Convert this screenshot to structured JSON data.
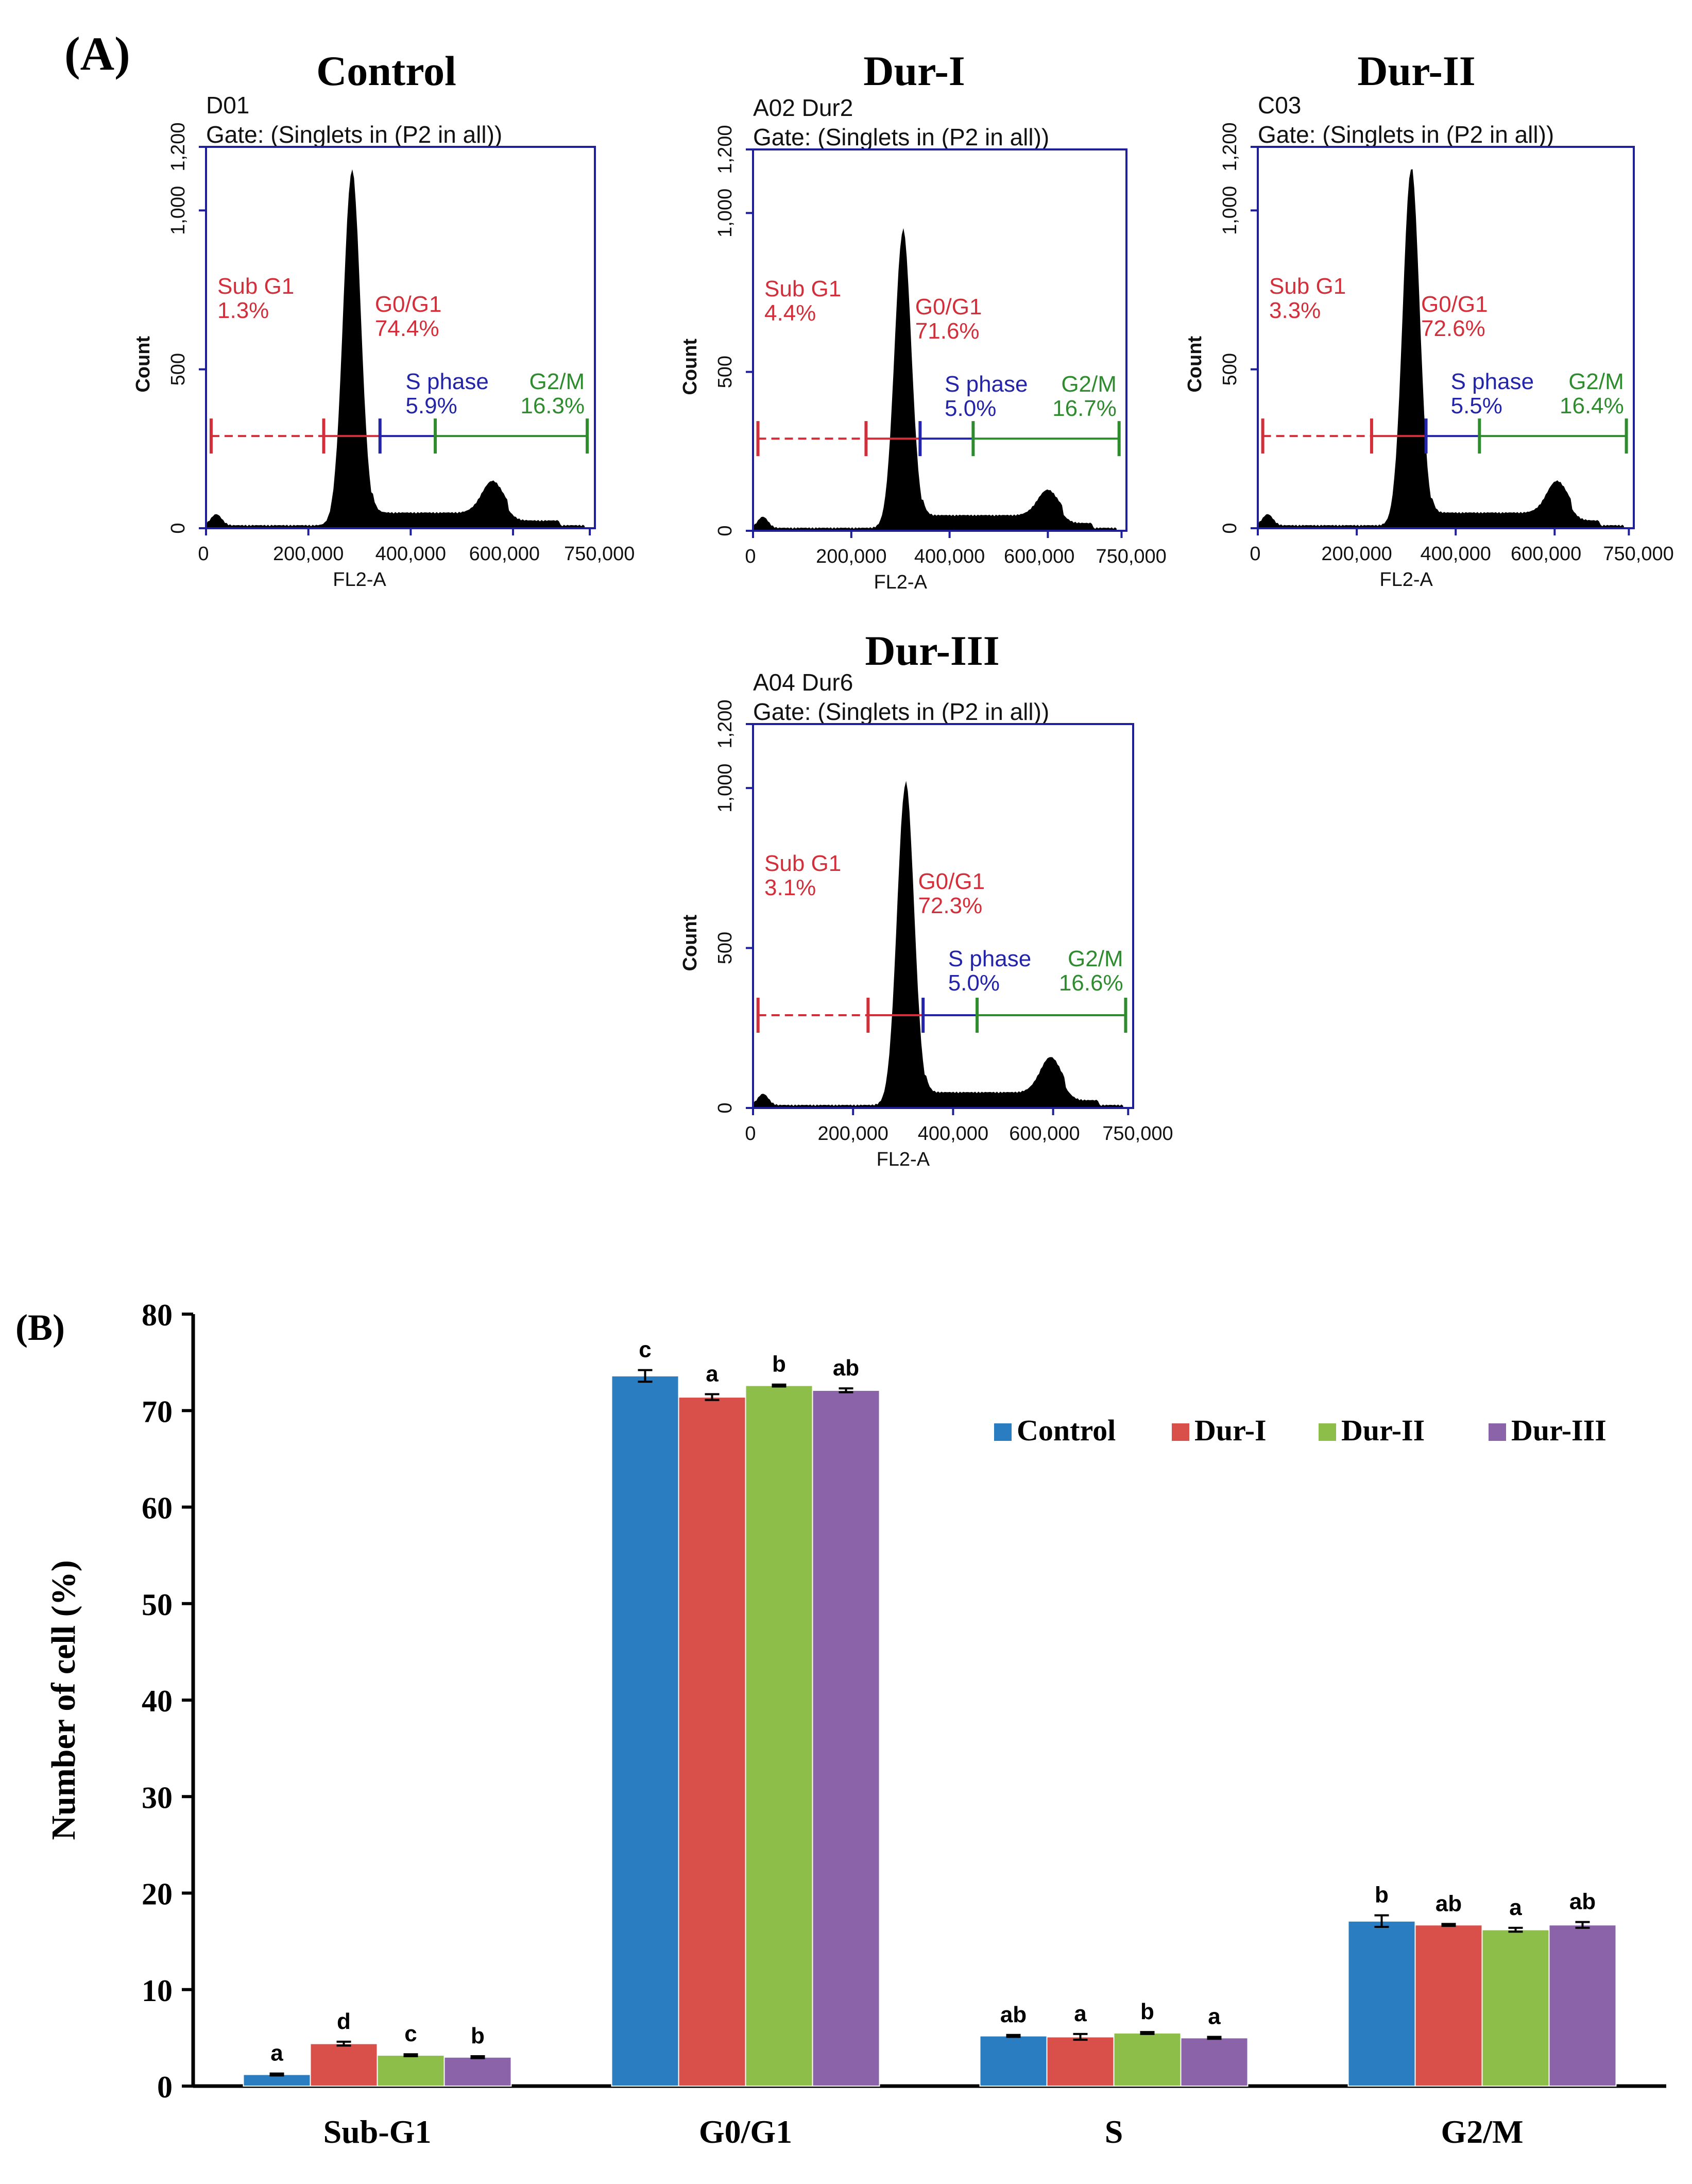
{
  "colors": {
    "axis_blue": "#1F1F9A",
    "subg1": "#D32F3A",
    "g0g1": "#D32F3A",
    "sphase": "#2424A8",
    "g2m": "#2E8B2E",
    "hist": "#000000",
    "bar_control": "#2A7DC0",
    "bar_dur1": "#D9504B",
    "bar_dur2": "#8DBE4A",
    "bar_dur3": "#8A63A8"
  },
  "panel_a_label": "(A)",
  "panel_b_label": "(B)",
  "histograms": [
    {
      "title": "Control",
      "sample": "D01",
      "gate": "Gate: (Singlets in (P2 in all))",
      "xlabel": "FL2-A",
      "ylabel": "Count",
      "xticks": [
        "0",
        "200,000",
        "400,000",
        "600,000",
        "750,000"
      ],
      "yticks": [
        "0",
        "500",
        "1,000",
        "1,200"
      ],
      "subg1_label": "Sub G1",
      "subg1_pct": "1.3%",
      "g0g1_label": "G0/G1",
      "g0g1_pct": "74.4%",
      "s_label": "S phase",
      "s_pct": "5.9%",
      "g2m_label": "G2/M",
      "g2m_pct": "16.3%",
      "peak_x": 285000,
      "peak_count": 1110,
      "g2_x": 560000,
      "g2_count": 100,
      "gate_edges": [
        10000,
        230000,
        340000,
        448000,
        745000
      ]
    },
    {
      "title": "Dur-I",
      "sample": "A02 Dur2",
      "gate": "Gate: (Singlets in (P2 in all))",
      "xlabel": "FL2-A",
      "ylabel": "Count",
      "xticks": [
        "0",
        "200,000",
        "400,000",
        "600,000",
        "750,000"
      ],
      "yticks": [
        "0",
        "500",
        "1,000",
        "1,200"
      ],
      "subg1_label": "Sub G1",
      "subg1_pct": "4.4%",
      "g0g1_label": "G0/G1",
      "g0g1_pct": "71.6%",
      "s_label": "S phase",
      "s_pct": "5.0%",
      "g2m_label": "G2/M",
      "g2m_pct": "16.7%",
      "peak_x": 305000,
      "peak_count": 930,
      "g2_x": 600000,
      "g2_count": 80,
      "gate_edges": [
        10000,
        230000,
        340000,
        448000,
        745000
      ]
    },
    {
      "title": "Dur-II",
      "sample": "C03",
      "gate": "Gate: (Singlets in (P2 in all))",
      "xlabel": "FL2-A",
      "ylabel": "Count",
      "xticks": [
        "0",
        "200,000",
        "400,000",
        "600,000",
        "750,000"
      ],
      "yticks": [
        "0",
        "500",
        "1,000",
        "1,200"
      ],
      "subg1_label": "Sub G1",
      "subg1_pct": "3.3%",
      "g0g1_label": "G0/G1",
      "g0g1_pct": "72.6%",
      "s_label": "S phase",
      "s_pct": "5.5%",
      "g2m_label": "G2/M",
      "g2m_pct": "16.4%",
      "peak_x": 310000,
      "peak_count": 1120,
      "g2_x": 605000,
      "g2_count": 100,
      "gate_edges": [
        10000,
        230000,
        340000,
        448000,
        745000
      ]
    },
    {
      "title": "Dur-III",
      "sample": "A04 Dur6",
      "gate": "Gate: (Singlets in (P2 in all))",
      "xlabel": "FL2-A",
      "ylabel": "Count",
      "xticks": [
        "0",
        "200,000",
        "400,000",
        "600,000",
        "750,000"
      ],
      "yticks": [
        "0",
        "500",
        "1,000",
        "1,200"
      ],
      "subg1_label": "Sub G1",
      "subg1_pct": "3.1%",
      "g0g1_label": "G0/G1",
      "g0g1_pct": "72.3%",
      "s_label": "S phase",
      "s_pct": "5.0%",
      "g2m_label": "G2/M",
      "g2m_pct": "16.6%",
      "peak_x": 305000,
      "peak_count": 1000,
      "g2_x": 595000,
      "g2_count": 110,
      "gate_edges": [
        10000,
        230000,
        340000,
        448000,
        745000
      ]
    }
  ],
  "chart_data": {
    "type": "bar",
    "categories": [
      "Sub-G1",
      "G0/G1",
      "S",
      "G2/M"
    ],
    "ylabel": "Number of cell (%)",
    "xlabel": "",
    "ylim": [
      0,
      80
    ],
    "yticks": [
      "0",
      "10",
      "20",
      "30",
      "40",
      "50",
      "60",
      "70",
      "80"
    ],
    "legend_position": "top-right",
    "grid": false,
    "series": [
      {
        "name": "Control",
        "values": [
          1.2,
          73.6,
          5.2,
          17.1
        ],
        "errors": [
          0.1,
          0.6,
          0.1,
          0.6
        ],
        "letters": [
          "a",
          "c",
          "ab",
          "b"
        ]
      },
      {
        "name": "Dur-I",
        "values": [
          4.4,
          71.4,
          5.1,
          16.7
        ],
        "errors": [
          0.2,
          0.3,
          0.3,
          0.1
        ],
        "letters": [
          "d",
          "a",
          "a",
          "ab"
        ]
      },
      {
        "name": "Dur-II",
        "values": [
          3.2,
          72.6,
          5.5,
          16.2
        ],
        "errors": [
          0.1,
          0.1,
          0.1,
          0.2
        ],
        "letters": [
          "c",
          "b",
          "b",
          "a"
        ]
      },
      {
        "name": "Dur-III",
        "values": [
          3.0,
          72.1,
          5.0,
          16.7
        ],
        "errors": [
          0.1,
          0.2,
          0.1,
          0.3
        ],
        "letters": [
          "b",
          "ab",
          "a",
          "ab"
        ]
      }
    ]
  }
}
